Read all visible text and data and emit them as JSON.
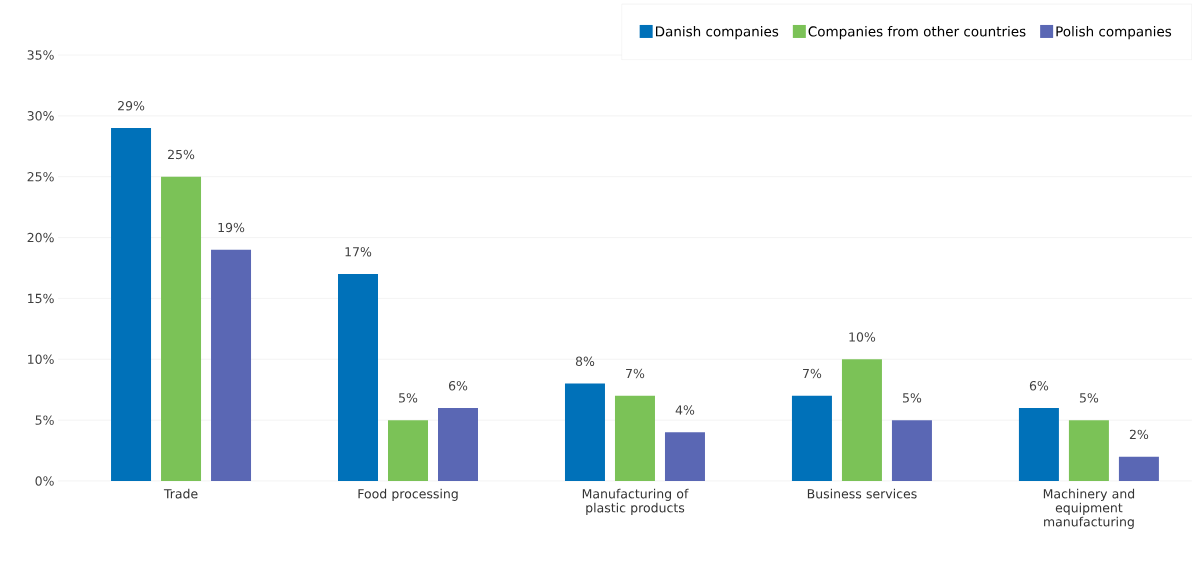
{
  "chart_data": {
    "type": "bar",
    "categories": [
      "Trade",
      "Food processing",
      "Manufacturing of plastic products",
      "Business services",
      "Machinery and equipment manufacturing"
    ],
    "series": [
      {
        "name": "Danish companies",
        "color": "#0071b9",
        "values": [
          29,
          17,
          8,
          7,
          6
        ],
        "value_labels": [
          "29%",
          "17%",
          "8%",
          "7%",
          "6%"
        ]
      },
      {
        "name": "Companies from other countries",
        "color": "#7bc257",
        "values": [
          25,
          5,
          7,
          10,
          5
        ],
        "value_labels": [
          "25%",
          "5%",
          "7%",
          "10%",
          "5%"
        ]
      },
      {
        "name": "Polish companies",
        "color": "#5a67b4",
        "values": [
          19,
          6,
          4,
          5,
          2
        ],
        "value_labels": [
          "19%",
          "6%",
          "4%",
          "5%",
          "2%"
        ]
      }
    ],
    "ylim": [
      0,
      35
    ],
    "yticks": [
      {
        "value": 0,
        "label": "0%"
      },
      {
        "value": 5,
        "label": "5%"
      },
      {
        "value": 10,
        "label": "10%"
      },
      {
        "value": 15,
        "label": "15%"
      },
      {
        "value": 20,
        "label": "20%"
      },
      {
        "value": 25,
        "label": "25%"
      },
      {
        "value": 30,
        "label": "30%"
      },
      {
        "value": 35,
        "label": "35%"
      }
    ],
    "grid": "y",
    "legend": "top right"
  }
}
